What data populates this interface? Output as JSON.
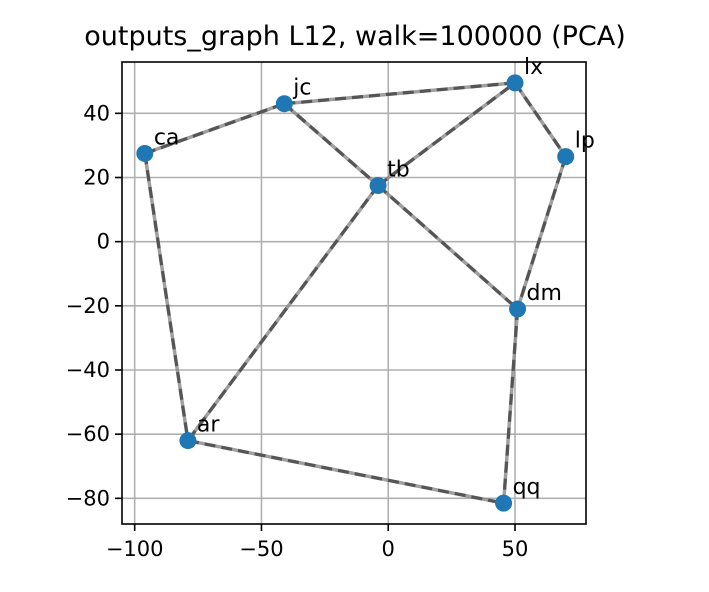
{
  "chart_data": {
    "type": "scatter",
    "title": "outputs_graph L12, walk=100000 (PCA)",
    "xlabel": "",
    "ylabel": "",
    "xlim": [
      -105,
      78
    ],
    "ylim": [
      -88,
      56
    ],
    "xticks": [
      -100,
      -50,
      0,
      50
    ],
    "yticks": [
      -80,
      -60,
      -40,
      -20,
      0,
      20,
      40
    ],
    "xtick_labels": [
      "−100",
      "−50",
      "0",
      "50"
    ],
    "ytick_labels": [
      "−80",
      "−60",
      "−40",
      "−20",
      "0",
      "20",
      "40"
    ],
    "grid": true,
    "point_color": "#1f77b4",
    "edge_color": "#808080",
    "points": [
      {
        "label": "ca",
        "x": -96,
        "y": 27.5
      },
      {
        "label": "jc",
        "x": -41,
        "y": 43
      },
      {
        "label": "lx",
        "x": 50,
        "y": 49.5
      },
      {
        "label": "lp",
        "x": 70,
        "y": 26.5
      },
      {
        "label": "tb",
        "x": -4,
        "y": 17.5
      },
      {
        "label": "dm",
        "x": 51,
        "y": -21
      },
      {
        "label": "ar",
        "x": -79,
        "y": -62
      },
      {
        "label": "qq",
        "x": 45.5,
        "y": -81.5
      }
    ],
    "edges": [
      [
        "ca",
        "jc"
      ],
      [
        "jc",
        "lx"
      ],
      [
        "jc",
        "tb"
      ],
      [
        "tb",
        "lx"
      ],
      [
        "lx",
        "lp"
      ],
      [
        "lp",
        "dm"
      ],
      [
        "tb",
        "dm"
      ],
      [
        "tb",
        "ar"
      ],
      [
        "ca",
        "ar"
      ],
      [
        "ar",
        "qq"
      ],
      [
        "dm",
        "qq"
      ]
    ]
  }
}
